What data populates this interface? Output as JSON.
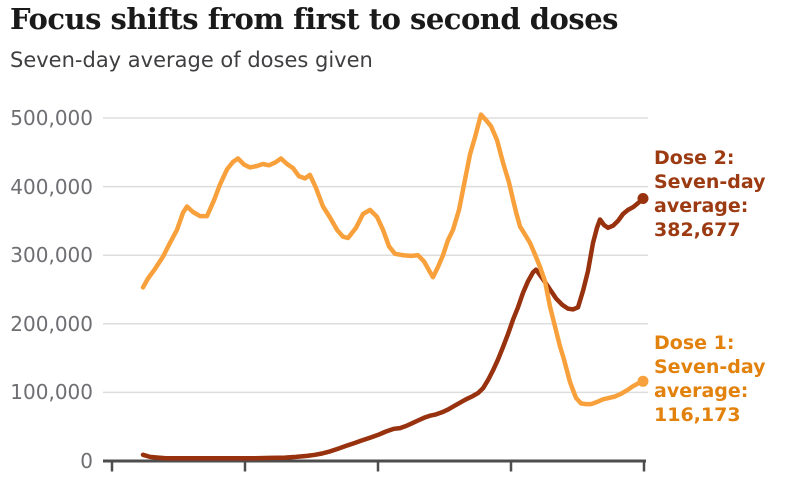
{
  "header": {
    "title": "Focus shifts from first to second doses",
    "subtitle": "Seven-day average of doses given"
  },
  "y_axis": {
    "ticks": [
      {
        "label": "0",
        "value": 0
      },
      {
        "label": "100,000",
        "value": 100000
      },
      {
        "label": "200,000",
        "value": 200000
      },
      {
        "label": "300,000",
        "value": 300000
      },
      {
        "label": "400,000",
        "value": 400000
      },
      {
        "label": "500,000",
        "value": 500000
      }
    ]
  },
  "annotations": {
    "dose2": {
      "lines": [
        "Dose 2:",
        "Seven-day",
        "average:",
        "382,677"
      ],
      "color": "#9C3A12"
    },
    "dose1": {
      "lines": [
        "Dose 1:",
        "Seven-day",
        "average:",
        "116,173"
      ],
      "color": "#E2820D"
    }
  },
  "colors": {
    "dose1_line": "#F8A13C",
    "dose2_line": "#97310E",
    "grid": "#DDDDDD",
    "axis": "#4D4D4D",
    "y_label": "#6E6E73",
    "title": "#1A1A1A",
    "subtitle": "#3F3F42"
  },
  "chart_data": {
    "type": "line",
    "title": "Focus shifts from first to second doses",
    "subtitle": "Seven-day average of doses given",
    "ylabel": "Seven-day average of doses given",
    "ylim": [
      0,
      500000
    ],
    "y_tick_labels": [
      "0",
      "100,000",
      "200,000",
      "300,000",
      "400,000",
      "500,000"
    ],
    "x_unit": "relative timeline position 0-1 (no date labels shown on axis)",
    "grid": "horizontal",
    "legend_position": "right-annotations",
    "series": [
      {
        "name": "Dose 2",
        "color": "#97310E",
        "latest_value": 382677,
        "annotation": "Dose 2: Seven-day average: 382,677",
        "points": [
          [
            0.0,
            9000
          ],
          [
            0.014,
            6000
          ],
          [
            0.03,
            5000
          ],
          [
            0.046,
            4000
          ],
          [
            0.074,
            4000
          ],
          [
            0.104,
            4000
          ],
          [
            0.134,
            4000
          ],
          [
            0.164,
            4000
          ],
          [
            0.194,
            4000
          ],
          [
            0.224,
            4000
          ],
          [
            0.254,
            4500
          ],
          [
            0.284,
            5000
          ],
          [
            0.306,
            6000
          ],
          [
            0.328,
            7500
          ],
          [
            0.344,
            9000
          ],
          [
            0.358,
            11000
          ],
          [
            0.374,
            14000
          ],
          [
            0.39,
            18000
          ],
          [
            0.406,
            22000
          ],
          [
            0.422,
            26000
          ],
          [
            0.438,
            30000
          ],
          [
            0.454,
            34000
          ],
          [
            0.47,
            38000
          ],
          [
            0.486,
            43000
          ],
          [
            0.502,
            47000
          ],
          [
            0.514,
            48000
          ],
          [
            0.526,
            51000
          ],
          [
            0.538,
            55000
          ],
          [
            0.55,
            59000
          ],
          [
            0.562,
            63000
          ],
          [
            0.574,
            66000
          ],
          [
            0.586,
            68000
          ],
          [
            0.598,
            71000
          ],
          [
            0.61,
            75000
          ],
          [
            0.622,
            80000
          ],
          [
            0.634,
            85000
          ],
          [
            0.646,
            90000
          ],
          [
            0.658,
            94000
          ],
          [
            0.67,
            99000
          ],
          [
            0.68,
            106000
          ],
          [
            0.69,
            118000
          ],
          [
            0.7,
            132000
          ],
          [
            0.71,
            148000
          ],
          [
            0.72,
            166000
          ],
          [
            0.73,
            185000
          ],
          [
            0.74,
            206000
          ],
          [
            0.75,
            224000
          ],
          [
            0.76,
            245000
          ],
          [
            0.77,
            262000
          ],
          [
            0.78,
            275000
          ],
          [
            0.786,
            279000
          ],
          [
            0.794,
            271000
          ],
          [
            0.804,
            261000
          ],
          [
            0.814,
            250000
          ],
          [
            0.826,
            237000
          ],
          [
            0.838,
            228000
          ],
          [
            0.85,
            222000
          ],
          [
            0.86,
            221000
          ],
          [
            0.87,
            224000
          ],
          [
            0.88,
            248000
          ],
          [
            0.89,
            277000
          ],
          [
            0.9,
            318000
          ],
          [
            0.908,
            340000
          ],
          [
            0.914,
            352000
          ],
          [
            0.922,
            344000
          ],
          [
            0.93,
            340000
          ],
          [
            0.94,
            343000
          ],
          [
            0.95,
            350000
          ],
          [
            0.96,
            360000
          ],
          [
            0.97,
            366000
          ],
          [
            0.98,
            370000
          ],
          [
            0.99,
            376000
          ],
          [
            1.0,
            382677
          ]
        ]
      },
      {
        "name": "Dose 1",
        "color": "#F8A13C",
        "latest_value": 116173,
        "annotation": "Dose 1: Seven-day average: 116,173",
        "points": [
          [
            0.0,
            253000
          ],
          [
            0.01,
            266000
          ],
          [
            0.024,
            280000
          ],
          [
            0.04,
            298000
          ],
          [
            0.054,
            318000
          ],
          [
            0.068,
            337000
          ],
          [
            0.08,
            362000
          ],
          [
            0.088,
            371000
          ],
          [
            0.1,
            363000
          ],
          [
            0.114,
            357000
          ],
          [
            0.128,
            357000
          ],
          [
            0.142,
            380000
          ],
          [
            0.154,
            403000
          ],
          [
            0.168,
            425000
          ],
          [
            0.18,
            436000
          ],
          [
            0.19,
            441000
          ],
          [
            0.202,
            432000
          ],
          [
            0.214,
            428000
          ],
          [
            0.228,
            430000
          ],
          [
            0.24,
            433000
          ],
          [
            0.252,
            431000
          ],
          [
            0.264,
            435000
          ],
          [
            0.276,
            441000
          ],
          [
            0.288,
            433000
          ],
          [
            0.3,
            427000
          ],
          [
            0.312,
            415000
          ],
          [
            0.324,
            412000
          ],
          [
            0.334,
            417000
          ],
          [
            0.346,
            398000
          ],
          [
            0.36,
            371000
          ],
          [
            0.374,
            355000
          ],
          [
            0.388,
            337000
          ],
          [
            0.4,
            327000
          ],
          [
            0.41,
            325000
          ],
          [
            0.426,
            340000
          ],
          [
            0.44,
            360000
          ],
          [
            0.454,
            366000
          ],
          [
            0.468,
            356000
          ],
          [
            0.48,
            337000
          ],
          [
            0.492,
            313000
          ],
          [
            0.504,
            302000
          ],
          [
            0.52,
            300000
          ],
          [
            0.536,
            299000
          ],
          [
            0.55,
            300000
          ],
          [
            0.562,
            291000
          ],
          [
            0.572,
            278000
          ],
          [
            0.58,
            268000
          ],
          [
            0.59,
            283000
          ],
          [
            0.6,
            300000
          ],
          [
            0.61,
            322000
          ],
          [
            0.62,
            337000
          ],
          [
            0.632,
            366000
          ],
          [
            0.644,
            410000
          ],
          [
            0.654,
            447000
          ],
          [
            0.664,
            472000
          ],
          [
            0.676,
            505000
          ],
          [
            0.686,
            497000
          ],
          [
            0.696,
            488000
          ],
          [
            0.708,
            468000
          ],
          [
            0.72,
            435000
          ],
          [
            0.732,
            406000
          ],
          [
            0.74,
            381000
          ],
          [
            0.746,
            363000
          ],
          [
            0.754,
            342000
          ],
          [
            0.764,
            330000
          ],
          [
            0.774,
            318000
          ],
          [
            0.784,
            301000
          ],
          [
            0.794,
            283000
          ],
          [
            0.804,
            262000
          ],
          [
            0.814,
            225000
          ],
          [
            0.824,
            196000
          ],
          [
            0.834,
            167000
          ],
          [
            0.842,
            148000
          ],
          [
            0.854,
            115000
          ],
          [
            0.866,
            92000
          ],
          [
            0.876,
            84000
          ],
          [
            0.886,
            83000
          ],
          [
            0.896,
            83000
          ],
          [
            0.908,
            86000
          ],
          [
            0.92,
            90000
          ],
          [
            0.932,
            92000
          ],
          [
            0.944,
            94000
          ],
          [
            0.956,
            98000
          ],
          [
            0.968,
            103000
          ],
          [
            0.98,
            109000
          ],
          [
            0.99,
            113000
          ],
          [
            1.0,
            116173
          ]
        ]
      }
    ]
  }
}
